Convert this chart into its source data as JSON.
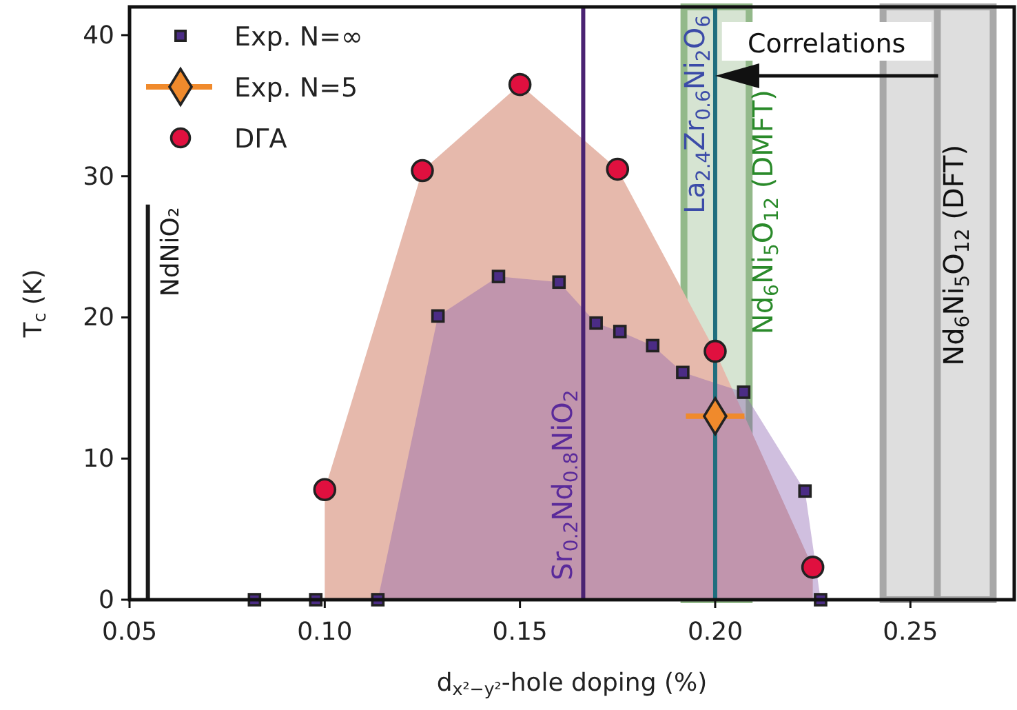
{
  "chart_data": {
    "type": "scatter",
    "xlabel": "d$_{x²−y²}$-hole doping (%)",
    "ylabel": "T$_{c}$ (K)",
    "xlim": [
      0.05,
      0.2766
    ],
    "ylim": [
      0,
      42
    ],
    "xticks": [
      {
        "value": 0.05,
        "label": "0.05"
      },
      {
        "value": 0.1,
        "label": "0.10"
      },
      {
        "value": 0.15,
        "label": "0.15"
      },
      {
        "value": 0.2,
        "label": "0.20"
      },
      {
        "value": 0.25,
        "label": "0.25"
      }
    ],
    "yticks": [
      0,
      10,
      20,
      30,
      40
    ],
    "grid": false,
    "legend": "top left",
    "series": [
      {
        "type": "area",
        "color": "#e6b9ac",
        "x": [
          0.1,
          0.125,
          0.15,
          0.175,
          0.2,
          0.225
        ],
        "values": [
          7.8,
          30.4,
          36.5,
          30.5,
          17.6,
          2.3
        ]
      },
      {
        "type": "area",
        "color": "#8a5fae",
        "x": [
          0.1136,
          0.129,
          0.1445,
          0.16,
          0.1695,
          0.1756,
          0.184,
          0.1917,
          0.2073,
          0.223,
          0.227
        ],
        "values": [
          0,
          20.1,
          22.9,
          22.5,
          19.6,
          19.0,
          18.0,
          16.1,
          14.7,
          7.7,
          0
        ]
      },
      {
        "name": "Exp. N=∞",
        "marker": "square",
        "color": "#4b2c85",
        "x": [
          0.082,
          0.0977,
          0.1136,
          0.129,
          0.1445,
          0.16,
          0.1695,
          0.1756,
          0.184,
          0.1917,
          0.2073,
          0.223,
          0.227
        ],
        "values": [
          0,
          0,
          0,
          20.1,
          22.9,
          22.5,
          19.6,
          19.0,
          18.0,
          16.1,
          14.7,
          7.7,
          0
        ]
      },
      {
        "name": "Exp. N=5",
        "marker": "diamond",
        "color": "#f08a2c",
        "x": [
          0.2
        ],
        "values": [
          13.0
        ],
        "xerrors": [
          0.0075
        ]
      },
      {
        "name": "DΓA",
        "marker": "circle",
        "color": "#e0103f",
        "x": [
          0.1,
          0.125,
          0.15,
          0.175,
          0.2,
          0.225
        ],
        "values": [
          7.8,
          30.4,
          36.5,
          30.5,
          17.6,
          2.3
        ]
      },
      {
        "type": "line",
        "name": "NdNiO₂",
        "color": "#1a1a1a",
        "x": [
          0.0547,
          0.0547
        ],
        "values": [
          0,
          28
        ]
      }
    ],
    "ref_lines": [
      {
        "axis": "x",
        "value": 0.1662,
        "label": "Sr$_{0.2}$Nd$_{0.8}$NiO$_{2}$",
        "color": "#4a2372"
      },
      {
        "axis": "x",
        "value": 0.2,
        "label": "La$_{2.4}$Zr$_{0.6}$Ni$_{2}$O$_{6}$",
        "color": "#1f6e7e"
      },
      {
        "axis": "x",
        "value": 0.2569,
        "color": "#a5a5a5"
      }
    ],
    "bands": [
      {
        "axis": "x",
        "from": 0.192,
        "to": 0.2087,
        "label": "Nd$_{6}$Ni$_{5}$O$_{12}$ (DMFT)",
        "color": "#93b98a"
      },
      {
        "axis": "x",
        "from": 0.243,
        "to": 0.2712,
        "label": "Nd$_{6}$Ni$_{5}$O$_{12}$ (DFT)",
        "color": "#a8a8a8"
      }
    ],
    "annotations": [
      "Correlations"
    ]
  }
}
